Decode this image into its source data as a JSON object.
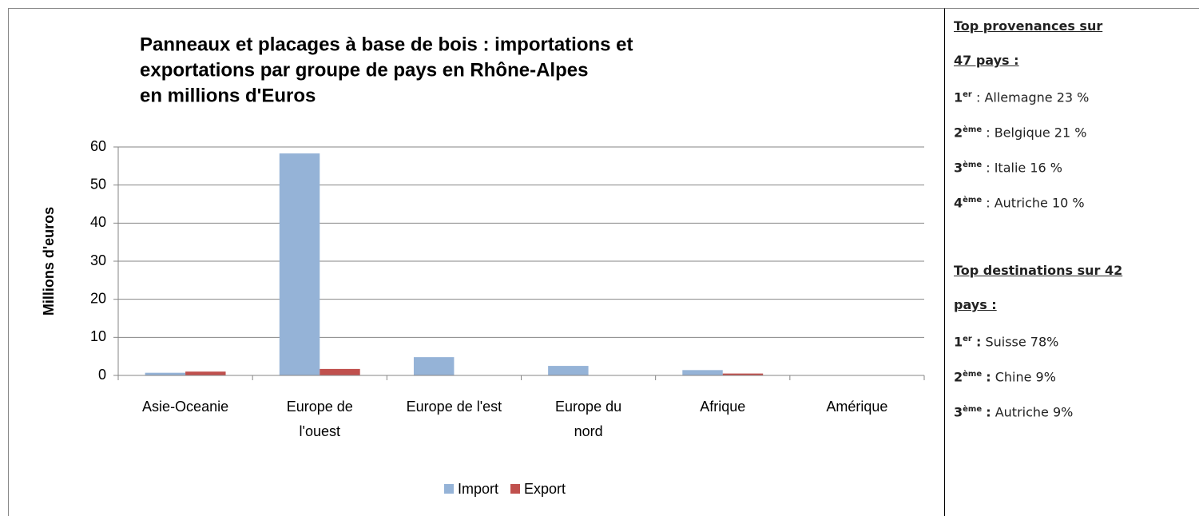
{
  "chart_data": {
    "type": "bar",
    "title": [
      "Panneaux et placages à base de bois : importations et",
      "exportations par groupe de pays en Rhône-Alpes",
      "en millions d'Euros"
    ],
    "y_label": "Millions d'euros",
    "categories": [
      "Asie-Oceanie",
      "Europe de\nl'ouest",
      "Europe de l'est",
      "Europe du\nnord",
      "Afrique",
      "Amérique"
    ],
    "series": [
      {
        "name": "Import",
        "color": "#95b3d7",
        "values": [
          0.7,
          58.3,
          4.8,
          2.5,
          1.4,
          0
        ]
      },
      {
        "name": "Export",
        "color": "#c0504d",
        "values": [
          1.0,
          1.7,
          0,
          0,
          0.5,
          0
        ]
      }
    ],
    "ylim": [
      0,
      60
    ],
    "yticks": [
      0,
      10,
      20,
      30,
      40,
      50,
      60
    ],
    "grid": true,
    "legend": "bottom"
  },
  "panel": {
    "sections": [
      {
        "heading": [
          "Top provenances sur",
          "47 pays :"
        ],
        "items": [
          {
            "rank": "1",
            "suffix": "er",
            "sep": ":",
            "text": "Allemagne 23 %"
          },
          {
            "rank": "2",
            "suffix": "ème",
            "sep": ":",
            "text": "Belgique 21 %"
          },
          {
            "rank": "3",
            "suffix": "ème",
            "sep": ":",
            "text": "Italie 16 %"
          },
          {
            "rank": "4",
            "suffix": "ème",
            "sep": ":",
            "text": "Autriche 10 %"
          }
        ]
      },
      {
        "heading": [
          "Top destinations sur 42",
          "pays :"
        ],
        "items": [
          {
            "rank": "1",
            "suffix": "er",
            "sep": ":",
            "text": "Suisse 78%"
          },
          {
            "rank": "2",
            "suffix": "ème",
            "sep": ":",
            "text": "Chine 9%"
          },
          {
            "rank": "3",
            "suffix": "ème",
            "sep": ":",
            "text": "Autriche 9%"
          }
        ]
      }
    ]
  }
}
